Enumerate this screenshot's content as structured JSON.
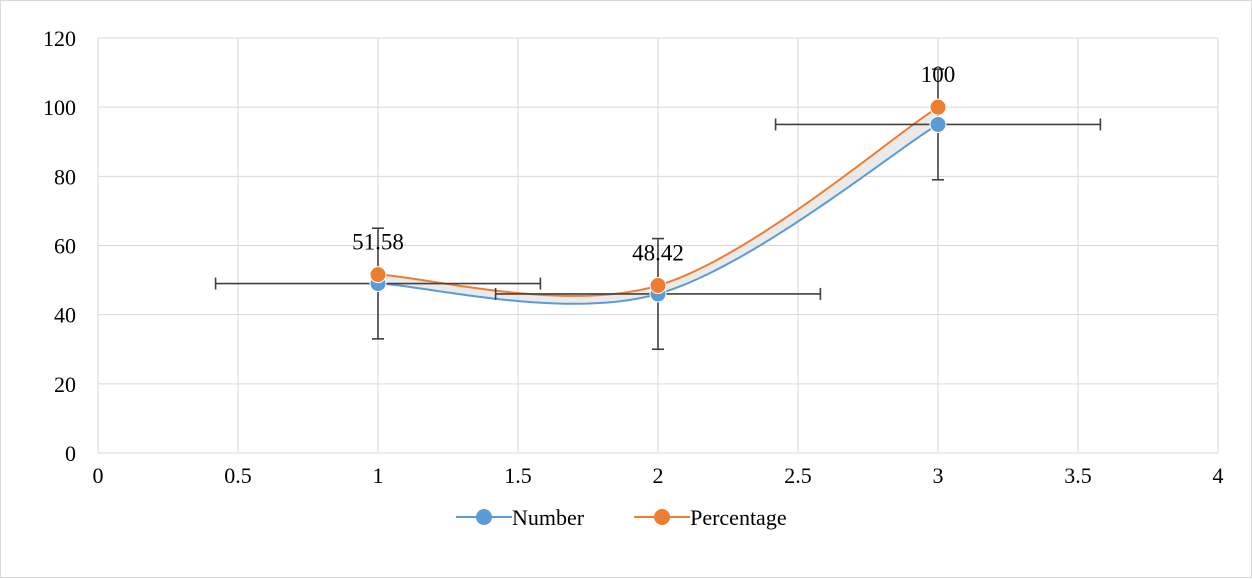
{
  "chart_data": {
    "type": "scatter",
    "title": "",
    "xlabel": "",
    "ylabel": "",
    "xlim": [
      0,
      4
    ],
    "ylim": [
      0,
      120
    ],
    "x_ticks": [
      0,
      0.5,
      1,
      1.5,
      2,
      2.5,
      3,
      3.5,
      4
    ],
    "y_ticks": [
      0,
      20,
      40,
      60,
      80,
      100,
      120
    ],
    "x_tick_labels": [
      "0",
      "0.5",
      "1",
      "1.5",
      "2",
      "2.5",
      "3",
      "3.5",
      "4"
    ],
    "y_tick_labels": [
      "0",
      "20",
      "40",
      "60",
      "80",
      "100",
      "120"
    ],
    "grid": true,
    "smoothed_lines": true,
    "legend_position": "bottom",
    "series": [
      {
        "name": "Number",
        "color": "#5b9bd5",
        "x": [
          1,
          2,
          3
        ],
        "y": [
          49,
          46,
          95
        ],
        "x_error": 0.58,
        "y_error": 16,
        "show_error_bars": true,
        "data_labels": null
      },
      {
        "name": "Percentage",
        "color": "#ed7d31",
        "x": [
          1,
          2,
          3
        ],
        "y": [
          51.58,
          48.42,
          100
        ],
        "show_error_bars": false,
        "data_labels": [
          "51.58",
          "48.42",
          "100"
        ]
      }
    ],
    "error_bar_color": "#404040"
  }
}
